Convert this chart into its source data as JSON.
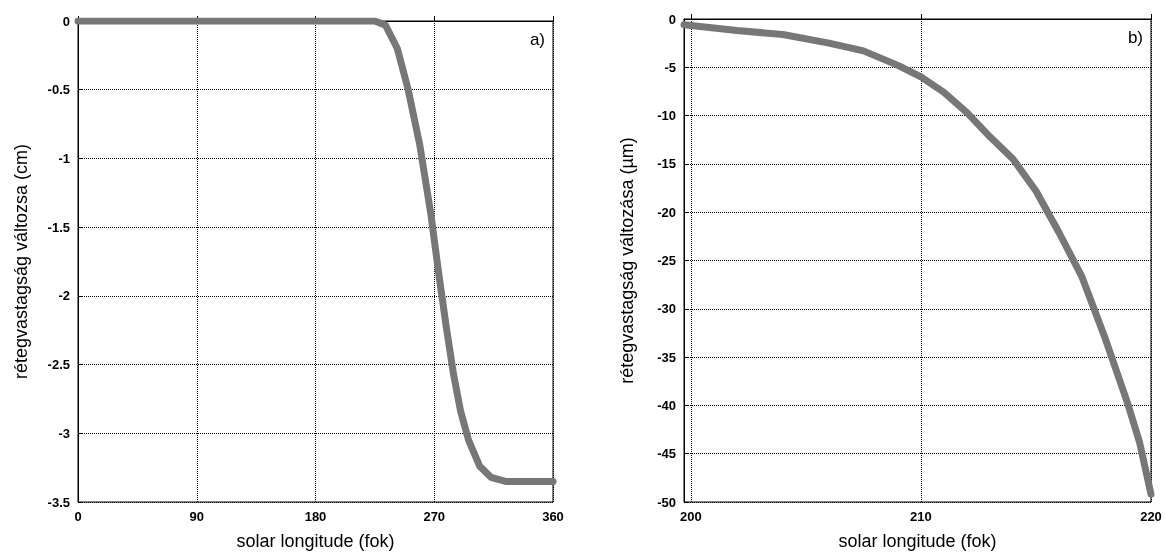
{
  "chart_data": [
    {
      "type": "line",
      "xlabel": "solar longitude (fok)",
      "ylabel": "rétegvastagság változsa (cm)",
      "annotations": [
        "a)"
      ],
      "xlim": [
        0,
        360
      ],
      "xticks": [
        0,
        90,
        180,
        270,
        360
      ],
      "ylim": [
        -3.5,
        0
      ],
      "yticks": [
        -3.5,
        -3,
        -2.5,
        -2,
        -1.5,
        -1,
        -0.5,
        0
      ],
      "grid": true,
      "marker": "none",
      "line_style": "solid",
      "series": [
        {
          "color": "#777777",
          "x": [
            0,
            90,
            180,
            225,
            233,
            242,
            250,
            259,
            267.5,
            273,
            279,
            284.6,
            290,
            296,
            304.5,
            313,
            324,
            360
          ],
          "values": [
            0,
            0,
            0,
            0,
            -0.03,
            -0.2,
            -0.49,
            -0.9,
            -1.41,
            -1.81,
            -2.22,
            -2.57,
            -2.84,
            -3.05,
            -3.24,
            -3.32,
            -3.35,
            -3.35
          ]
        }
      ]
    },
    {
      "type": "line",
      "xlabel": "solar longitude (fok)",
      "ylabel": "rétegvastagság változása (µm)",
      "annotations": [
        "b)"
      ],
      "xlim": [
        199.7,
        220
      ],
      "xticks": [
        200,
        210,
        220
      ],
      "ylim": [
        -50,
        0
      ],
      "yticks": [
        -50,
        -45,
        -40,
        -35,
        -30,
        -25,
        -20,
        -15,
        -10,
        -5,
        0
      ],
      "grid": true,
      "marker": "none",
      "line_style": "solid",
      "series": [
        {
          "color": "#777777",
          "x": [
            199.7,
            202,
            204,
            206,
            207.5,
            209,
            210,
            211,
            212,
            213,
            214,
            215,
            216,
            217,
            218,
            219,
            219.5,
            220
          ],
          "values": [
            -0.6,
            -1.2,
            -1.6,
            -2.5,
            -3.3,
            -4.8,
            -6,
            -7.6,
            -9.7,
            -12.2,
            -14.5,
            -17.8,
            -22.1,
            -26.7,
            -33,
            -39.9,
            -43.8,
            -49.2
          ]
        }
      ]
    }
  ]
}
